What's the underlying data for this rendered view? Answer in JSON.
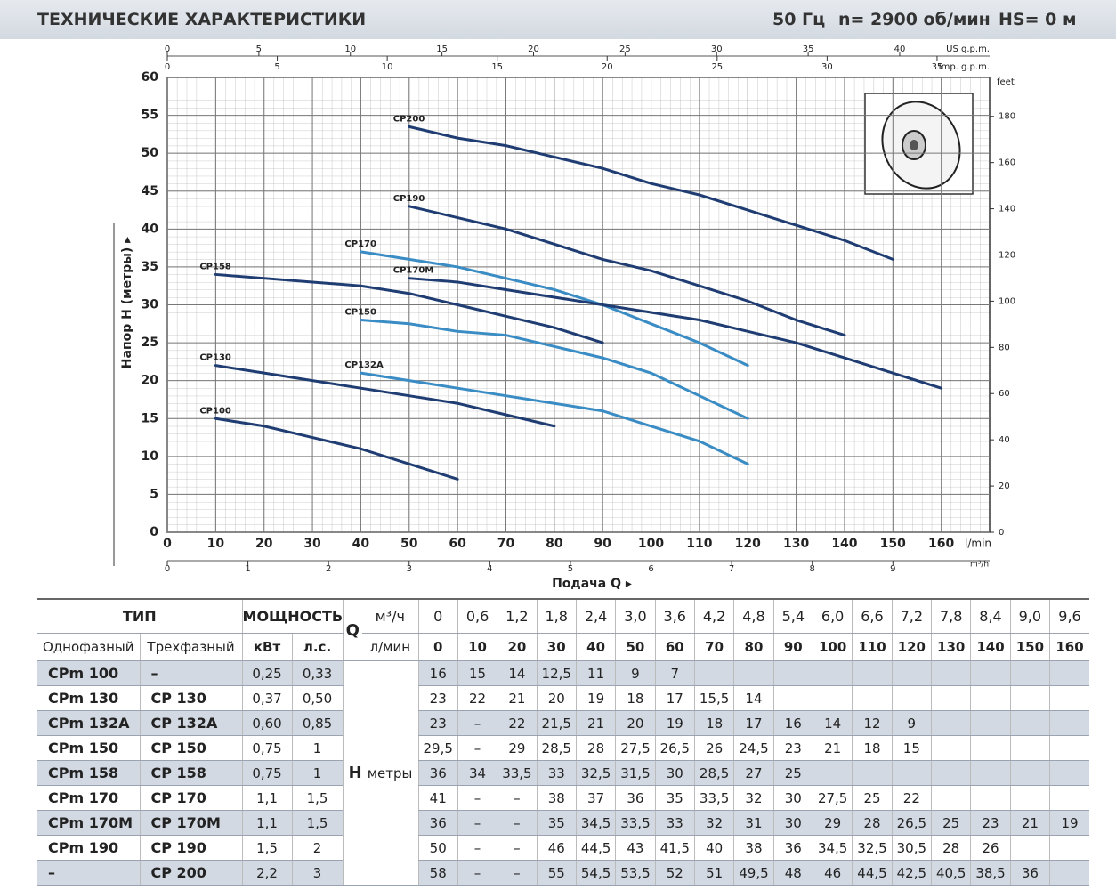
{
  "header": {
    "title": "ТЕХНИЧЕСКИЕ ХАРАКТЕРИСТИКИ",
    "frequency": "50 Гц",
    "speed": "n= 2900 об/мин",
    "suction": "HS= 0 м"
  },
  "chart_data": {
    "type": "line",
    "x_label": "Подача Q ▸",
    "y_label": "Напор H (метры) ▸",
    "x_unit": "l/min",
    "xlim": [
      0,
      170
    ],
    "xticks": [
      0,
      10,
      20,
      30,
      40,
      50,
      60,
      70,
      80,
      90,
      100,
      110,
      120,
      130,
      140,
      150,
      160
    ],
    "ylim": [
      0,
      60
    ],
    "yticks": [
      0,
      5,
      10,
      15,
      20,
      25,
      30,
      35,
      40,
      45,
      50,
      55,
      60
    ],
    "y2_label": "feet",
    "y2lim": [
      0,
      196.85
    ],
    "y2ticks": [
      0,
      20,
      40,
      60,
      80,
      100,
      120,
      140,
      160,
      180
    ],
    "us_gpm_label": "US g.p.m.",
    "us_gpm_lim": [
      0,
      44.91
    ],
    "us_gpm_ticks": [
      0,
      5,
      10,
      15,
      20,
      25,
      30,
      35,
      40
    ],
    "imp_gpm_label": "Imp. g.p.m.",
    "imp_gpm_lim": [
      0,
      37.39
    ],
    "imp_gpm_ticks": [
      0,
      5,
      10,
      15,
      20,
      25,
      30,
      35
    ],
    "m3h_label": "m³/h",
    "m3h_lim": [
      0,
      10.2
    ],
    "m3h_ticks": [
      0,
      1,
      2,
      3,
      4,
      5,
      6,
      7,
      8,
      9
    ],
    "grid": true,
    "series": [
      {
        "name": "CP200",
        "color": "#1f3d73",
        "x": [
          50,
          60,
          70,
          80,
          90,
          100,
          110,
          120,
          130,
          140,
          150
        ],
        "values": [
          53.5,
          52,
          51,
          49.5,
          48,
          46,
          44.5,
          42.5,
          40.5,
          38.5,
          36
        ]
      },
      {
        "name": "CP190",
        "color": "#1f3d73",
        "x": [
          50,
          60,
          70,
          80,
          90,
          100,
          110,
          120,
          130,
          140
        ],
        "values": [
          43,
          41.5,
          40,
          38,
          36,
          34.5,
          32.5,
          30.5,
          28,
          26
        ]
      },
      {
        "name": "CP170",
        "color": "#3a8cc4",
        "x": [
          40,
          50,
          60,
          70,
          80,
          90,
          100,
          110,
          120
        ],
        "values": [
          37,
          36,
          35,
          33.5,
          32,
          30,
          27.5,
          25,
          22
        ]
      },
      {
        "name": "CP170M",
        "color": "#1f3d73",
        "x": [
          50,
          60,
          70,
          80,
          90,
          100,
          110,
          120,
          130,
          140,
          150,
          160
        ],
        "values": [
          33.5,
          33,
          32,
          31,
          30,
          29,
          28,
          26.5,
          25,
          23,
          21,
          19
        ]
      },
      {
        "name": "CP158",
        "color": "#1f3d73",
        "x": [
          10,
          20,
          30,
          40,
          50,
          60,
          70,
          80,
          90
        ],
        "values": [
          34,
          33.5,
          33,
          32.5,
          31.5,
          30,
          28.5,
          27,
          25
        ]
      },
      {
        "name": "CP150",
        "color": "#3a8cc4",
        "x": [
          40,
          50,
          60,
          70,
          80,
          90,
          100,
          110,
          120
        ],
        "values": [
          28,
          27.5,
          26.5,
          26,
          24.5,
          23,
          21,
          18,
          15
        ]
      },
      {
        "name": "CP132A",
        "color": "#3a8cc4",
        "x": [
          40,
          50,
          60,
          70,
          80,
          90,
          100,
          110,
          120
        ],
        "values": [
          21,
          20,
          19,
          18,
          17,
          16,
          14,
          12,
          9
        ]
      },
      {
        "name": "CP130",
        "color": "#1f3d73",
        "x": [
          10,
          20,
          30,
          40,
          50,
          60,
          70,
          80
        ],
        "values": [
          22,
          21,
          20,
          19,
          18,
          17,
          15.5,
          14
        ]
      },
      {
        "name": "CP100",
        "color": "#1f3d73",
        "x": [
          10,
          20,
          30,
          40,
          50,
          60
        ],
        "values": [
          15,
          14,
          12.5,
          11,
          9,
          7
        ]
      }
    ]
  },
  "table": {
    "type_header": "ТИП",
    "power_header": "МОЩНОСТЬ",
    "q_symbol": "Q",
    "q_unit_m3h": "м³/ч",
    "q_unit_lmin": "л/мин",
    "single_phase": "Однофазный",
    "three_phase": "Трехфазный",
    "kw": "кВт",
    "hp": "л.с.",
    "h_symbol": "H",
    "h_unit": "метры",
    "q_m3h": [
      "0",
      "0,6",
      "1,2",
      "1,8",
      "2,4",
      "3,0",
      "3,6",
      "4,2",
      "4,8",
      "5,4",
      "6,0",
      "6,6",
      "7,2",
      "7,8",
      "8,4",
      "9,0",
      "9,6"
    ],
    "q_lmin": [
      0,
      10,
      20,
      30,
      40,
      50,
      60,
      70,
      80,
      90,
      100,
      110,
      120,
      130,
      140,
      150,
      160
    ],
    "rows": [
      {
        "single": "CPm 100",
        "three": "–",
        "kw": "0,25",
        "hp": "0,33",
        "h": [
          "16",
          "15",
          "14",
          "12,5",
          "11",
          "9",
          "7"
        ]
      },
      {
        "single": "CPm 130",
        "three": "CP 130",
        "kw": "0,37",
        "hp": "0,50",
        "h": [
          "23",
          "22",
          "21",
          "20",
          "19",
          "18",
          "17",
          "15,5",
          "14"
        ]
      },
      {
        "single": "CPm 132A",
        "three": "CP 132A",
        "kw": "0,60",
        "hp": "0,85",
        "h": [
          "23",
          "–",
          "22",
          "21,5",
          "21",
          "20",
          "19",
          "18",
          "17",
          "16",
          "14",
          "12",
          "9"
        ]
      },
      {
        "single": "CPm 150",
        "three": "CP 150",
        "kw": "0,75",
        "hp": "1",
        "h": [
          "29,5",
          "–",
          "29",
          "28,5",
          "28",
          "27,5",
          "26,5",
          "26",
          "24,5",
          "23",
          "21",
          "18",
          "15"
        ]
      },
      {
        "single": "CPm 158",
        "three": "CP 158",
        "kw": "0,75",
        "hp": "1",
        "h": [
          "36",
          "34",
          "33,5",
          "33",
          "32,5",
          "31,5",
          "30",
          "28,5",
          "27",
          "25"
        ]
      },
      {
        "single": "CPm 170",
        "three": "CP 170",
        "kw": "1,1",
        "hp": "1,5",
        "h": [
          "41",
          "–",
          "–",
          "38",
          "37",
          "36",
          "35",
          "33,5",
          "32",
          "30",
          "27,5",
          "25",
          "22"
        ]
      },
      {
        "single": "CPm 170M",
        "three": "CP 170M",
        "kw": "1,1",
        "hp": "1,5",
        "h": [
          "36",
          "–",
          "–",
          "35",
          "34,5",
          "33,5",
          "33",
          "32",
          "31",
          "30",
          "29",
          "28",
          "26,5",
          "25",
          "23",
          "21",
          "19"
        ]
      },
      {
        "single": "CPm 190",
        "three": "CP 190",
        "kw": "1,5",
        "hp": "2",
        "h": [
          "50",
          "–",
          "–",
          "46",
          "44,5",
          "43",
          "41,5",
          "40",
          "38",
          "36",
          "34,5",
          "32,5",
          "30,5",
          "28",
          "26"
        ]
      },
      {
        "single": "–",
        "three": "CP 200",
        "kw": "2,2",
        "hp": "3",
        "h": [
          "58",
          "–",
          "–",
          "55",
          "54,5",
          "53,5",
          "52",
          "51",
          "49,5",
          "48",
          "46",
          "44,5",
          "42,5",
          "40,5",
          "38,5",
          "36"
        ]
      }
    ]
  }
}
